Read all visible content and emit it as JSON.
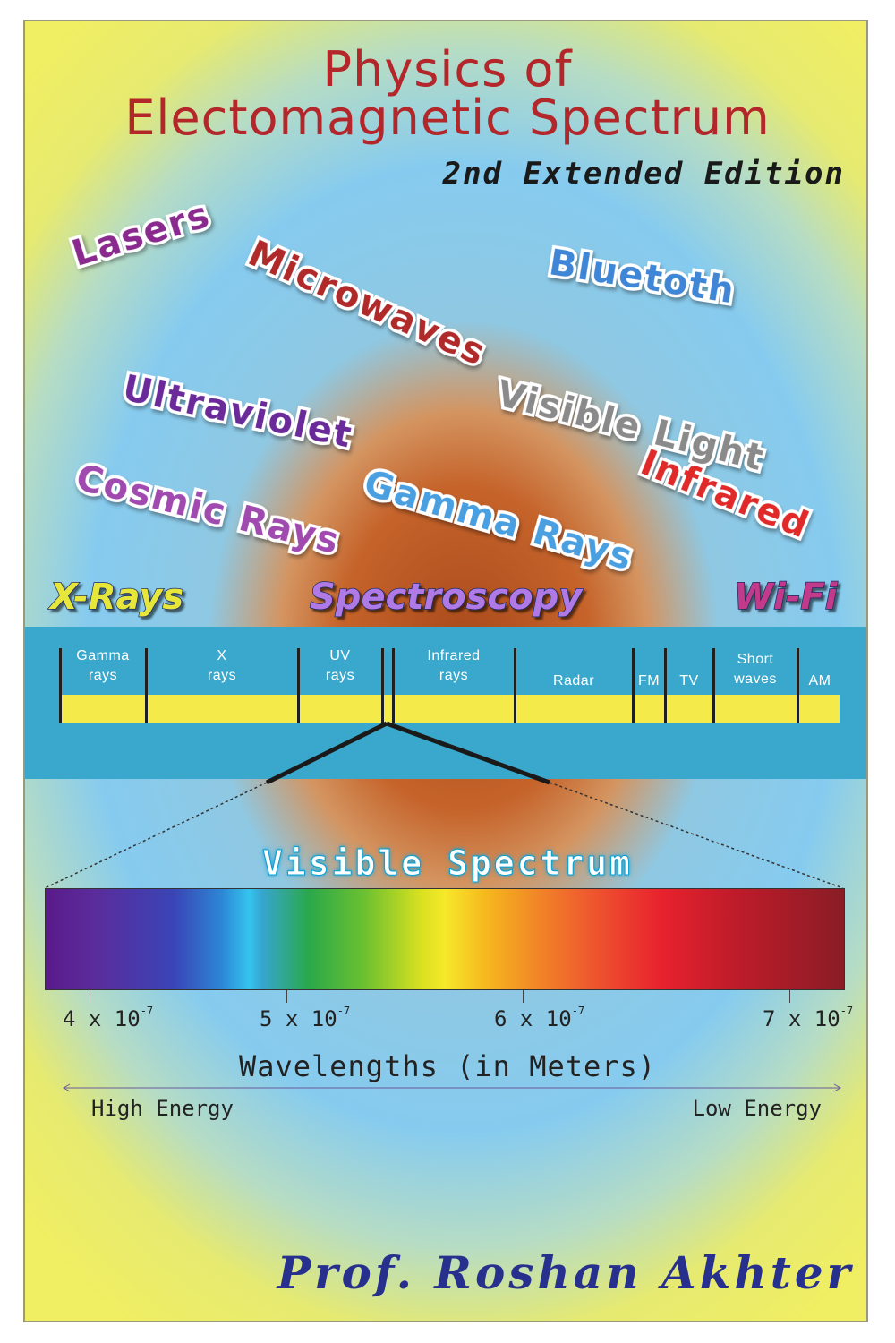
{
  "cover": {
    "title_line1": "Physics of",
    "title_line2": "Electomagnetic Spectrum",
    "edition": "2nd Extended Edition",
    "author": "Prof. Roshan Akhter"
  },
  "floating_words": [
    {
      "text": "Lasers",
      "color": "#8a2a8e"
    },
    {
      "text": "Microwaves",
      "color": "#b02a2a"
    },
    {
      "text": "Bluetoth",
      "color": "#3f86d6"
    },
    {
      "text": "Ultraviolet",
      "color": "#6a2a9a"
    },
    {
      "text": "Visible Light",
      "color": "#8a8a8a"
    },
    {
      "text": "Infrared",
      "color": "#e02a2a"
    },
    {
      "text": "Cosmic Rays",
      "color": "#a04ab0"
    },
    {
      "text": "Gamma Rays",
      "color": "#4a9fe0"
    }
  ],
  "banner": {
    "left": "X-Rays",
    "center": "Spectroscopy",
    "right": "Wi-Fi",
    "colors": {
      "left": "#e7e63a",
      "center": "#b07ae6",
      "right": "#c23a8a"
    }
  },
  "em_spectrum": {
    "band_color": "#3aa8cc",
    "strip_color": "#f4ea49",
    "regions": [
      [
        "Gamma",
        "rays"
      ],
      [
        "X",
        "rays"
      ],
      [
        "UV",
        "rays"
      ],
      [
        "Infrared",
        "rays"
      ],
      [
        "Radar"
      ],
      [
        "FM"
      ],
      [
        "TV"
      ],
      [
        "Short",
        "waves"
      ],
      [
        "AM"
      ]
    ]
  },
  "visible_spectrum": {
    "title": "Visible Spectrum",
    "ticks": [
      {
        "base": "4 x 10",
        "exp": "-7"
      },
      {
        "base": "5 x 10",
        "exp": "-7"
      },
      {
        "base": "6 x 10",
        "exp": "-7"
      },
      {
        "base": "7 x 10",
        "exp": "-7"
      }
    ],
    "axis_title": "Wavelengths (in Meters)",
    "high_energy": "High Energy",
    "low_energy": "Low Energy"
  }
}
